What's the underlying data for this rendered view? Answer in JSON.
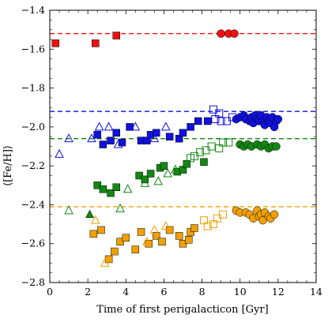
{
  "chart_data": {
    "type": "scatter",
    "xlabel": "Time of first perigalacticon [Gyr]",
    "ylabel": "⟨[Fe/H]⟩",
    "xlim": [
      0,
      14
    ],
    "ylim": [
      -2.8,
      -1.4
    ],
    "xticks": [
      0,
      2,
      4,
      6,
      8,
      10,
      12,
      14
    ],
    "yticks": [
      -2.8,
      -2.6,
      -2.4,
      -2.2,
      -2.0,
      -1.8,
      -1.6,
      -1.4
    ],
    "xtick_labels": [
      "0",
      "2",
      "4",
      "6",
      "8",
      "10",
      "12",
      "14"
    ],
    "ytick_labels": [
      "−2.8",
      "−2.6",
      "−2.4",
      "−2.2",
      "−2.0",
      "−1.8",
      "−1.6",
      "−1.4"
    ],
    "grid": false,
    "legend": "none",
    "reference_lines": [
      {
        "color": "#ee1111",
        "y": -1.52
      },
      {
        "color": "#1111dd",
        "y": -1.92
      },
      {
        "color": "#118811",
        "y": -2.06
      },
      {
        "color": "#f0a000",
        "y": -2.41
      }
    ],
    "series": [
      {
        "color": "#ee1111",
        "marker": "square",
        "filled": true,
        "points": [
          [
            0.3,
            -1.57
          ],
          [
            2.4,
            -1.57
          ],
          [
            3.5,
            -1.53
          ]
        ]
      },
      {
        "color": "#ee1111",
        "marker": "circle",
        "filled": true,
        "points": [
          [
            9.0,
            -1.52
          ],
          [
            9.4,
            -1.52
          ],
          [
            9.7,
            -1.52
          ]
        ]
      },
      {
        "color": "#1111dd",
        "marker": "square",
        "filled": true,
        "points": [
          [
            2.5,
            -2.04
          ],
          [
            2.8,
            -2.09
          ],
          [
            3.2,
            -2.07
          ],
          [
            3.5,
            -2.03
          ],
          [
            3.8,
            -2.08
          ],
          [
            4.2,
            -2.0
          ],
          [
            4.8,
            -2.07
          ],
          [
            5.1,
            -2.07
          ],
          [
            5.3,
            -2.04
          ],
          [
            5.6,
            -2.03
          ],
          [
            6.3,
            -2.05
          ],
          [
            6.8,
            -2.06
          ],
          [
            7.0,
            -2.03
          ],
          [
            7.4,
            -2.0
          ],
          [
            7.8,
            -1.97
          ],
          [
            8.3,
            -1.97
          ]
        ]
      },
      {
        "color": "#1111dd",
        "marker": "square",
        "filled": false,
        "points": [
          [
            8.7,
            -1.96
          ],
          [
            9.0,
            -1.97
          ],
          [
            8.6,
            -1.91
          ],
          [
            8.9,
            -1.93
          ],
          [
            9.3,
            -1.97
          ],
          [
            9.6,
            -1.95
          ]
        ]
      },
      {
        "color": "#1111dd",
        "marker": "triangle",
        "filled": false,
        "points": [
          [
            0.5,
            -2.14
          ],
          [
            1.0,
            -2.06
          ],
          [
            2.2,
            -2.06
          ],
          [
            2.6,
            -2.0
          ],
          [
            3.1,
            -2.0
          ],
          [
            3.6,
            -2.09
          ],
          [
            4.5,
            -2.0
          ],
          [
            5.5,
            -2.06
          ],
          [
            6.1,
            -2.0
          ]
        ]
      },
      {
        "color": "#1111dd",
        "marker": "circle",
        "filled": true,
        "points": [
          [
            9.8,
            -1.96
          ],
          [
            10.0,
            -1.95
          ],
          [
            10.2,
            -1.94
          ],
          [
            10.3,
            -1.96
          ],
          [
            10.5,
            -1.97
          ],
          [
            10.6,
            -1.95
          ],
          [
            10.7,
            -1.98
          ],
          [
            10.8,
            -1.94
          ],
          [
            10.9,
            -1.96
          ],
          [
            11.0,
            -1.97
          ],
          [
            11.1,
            -1.94
          ],
          [
            11.2,
            -1.97
          ],
          [
            11.3,
            -1.99
          ],
          [
            11.4,
            -1.95
          ],
          [
            11.5,
            -1.97
          ],
          [
            11.6,
            -1.98
          ],
          [
            11.7,
            -1.95
          ],
          [
            11.8,
            -2.0
          ],
          [
            11.9,
            -1.97
          ],
          [
            12.0,
            -1.96
          ]
        ]
      },
      {
        "color": "#118811",
        "marker": "square",
        "filled": true,
        "points": [
          [
            2.5,
            -2.3
          ],
          [
            2.8,
            -2.32
          ],
          [
            3.2,
            -2.34
          ],
          [
            3.5,
            -2.31
          ],
          [
            4.7,
            -2.25
          ],
          [
            5.0,
            -2.27
          ],
          [
            5.3,
            -2.24
          ],
          [
            5.8,
            -2.21
          ],
          [
            6.0,
            -2.2
          ],
          [
            6.7,
            -2.23
          ],
          [
            7.0,
            -2.22
          ],
          [
            7.2,
            -2.19
          ],
          [
            8.1,
            -2.18
          ]
        ]
      },
      {
        "color": "#118811",
        "marker": "square",
        "filled": false,
        "points": [
          [
            7.4,
            -2.16
          ],
          [
            7.6,
            -2.15
          ],
          [
            7.9,
            -2.13
          ],
          [
            8.2,
            -2.12
          ],
          [
            8.5,
            -2.1
          ],
          [
            8.9,
            -2.11
          ],
          [
            9.1,
            -2.08
          ],
          [
            9.4,
            -2.08
          ]
        ]
      },
      {
        "color": "#118811",
        "marker": "triangle",
        "filled": false,
        "points": [
          [
            1.0,
            -2.43
          ],
          [
            3.7,
            -2.42
          ],
          [
            4.1,
            -2.32
          ],
          [
            5.0,
            -2.29
          ],
          [
            5.7,
            -2.28
          ],
          [
            6.2,
            -2.24
          ],
          [
            6.6,
            -2.22
          ]
        ]
      },
      {
        "color": "#118811",
        "marker": "triangle",
        "filled": true,
        "points": [
          [
            2.1,
            -2.45
          ]
        ]
      },
      {
        "color": "#118811",
        "marker": "circle",
        "filled": true,
        "points": [
          [
            10.0,
            -2.09
          ],
          [
            10.2,
            -2.1
          ],
          [
            10.4,
            -2.09
          ],
          [
            10.6,
            -2.1
          ],
          [
            10.9,
            -2.09
          ],
          [
            11.1,
            -2.1
          ],
          [
            11.3,
            -2.09
          ],
          [
            11.5,
            -2.11
          ],
          [
            11.7,
            -2.1
          ],
          [
            11.9,
            -2.1
          ]
        ]
      },
      {
        "color": "#f0a000",
        "marker": "square",
        "filled": true,
        "points": [
          [
            2.3,
            -2.55
          ],
          [
            2.7,
            -2.53
          ],
          [
            3.1,
            -2.68
          ],
          [
            3.4,
            -2.64
          ],
          [
            3.7,
            -2.59
          ],
          [
            4.0,
            -2.57
          ],
          [
            4.5,
            -2.63
          ],
          [
            4.8,
            -2.54
          ],
          [
            5.2,
            -2.6
          ],
          [
            5.6,
            -2.56
          ],
          [
            5.9,
            -2.59
          ],
          [
            6.3,
            -2.53
          ],
          [
            6.8,
            -2.56
          ],
          [
            7.0,
            -2.6
          ],
          [
            7.3,
            -2.58
          ],
          [
            7.4,
            -2.54
          ],
          [
            7.6,
            -2.52
          ]
        ]
      },
      {
        "color": "#f0a000",
        "marker": "triangle",
        "filled": false,
        "points": [
          [
            2.4,
            -2.48
          ],
          [
            2.9,
            -2.7
          ],
          [
            5.1,
            -2.59
          ],
          [
            5.5,
            -2.53
          ],
          [
            6.1,
            -2.51
          ]
        ]
      },
      {
        "color": "#f0a000",
        "marker": "square",
        "filled": false,
        "points": [
          [
            8.1,
            -2.48
          ],
          [
            8.3,
            -2.51
          ],
          [
            8.6,
            -2.5
          ],
          [
            8.8,
            -2.47
          ],
          [
            9.1,
            -2.45
          ]
        ]
      },
      {
        "color": "#f0a000",
        "marker": "circle",
        "filled": true,
        "points": [
          [
            9.8,
            -2.43
          ],
          [
            10.0,
            -2.44
          ],
          [
            10.3,
            -2.44
          ],
          [
            10.5,
            -2.45
          ],
          [
            10.7,
            -2.47
          ],
          [
            10.9,
            -2.43
          ],
          [
            11.0,
            -2.46
          ],
          [
            11.1,
            -2.45
          ],
          [
            11.2,
            -2.48
          ],
          [
            11.3,
            -2.44
          ],
          [
            11.5,
            -2.46
          ],
          [
            11.6,
            -2.47
          ],
          [
            11.8,
            -2.45
          ]
        ]
      }
    ]
  }
}
